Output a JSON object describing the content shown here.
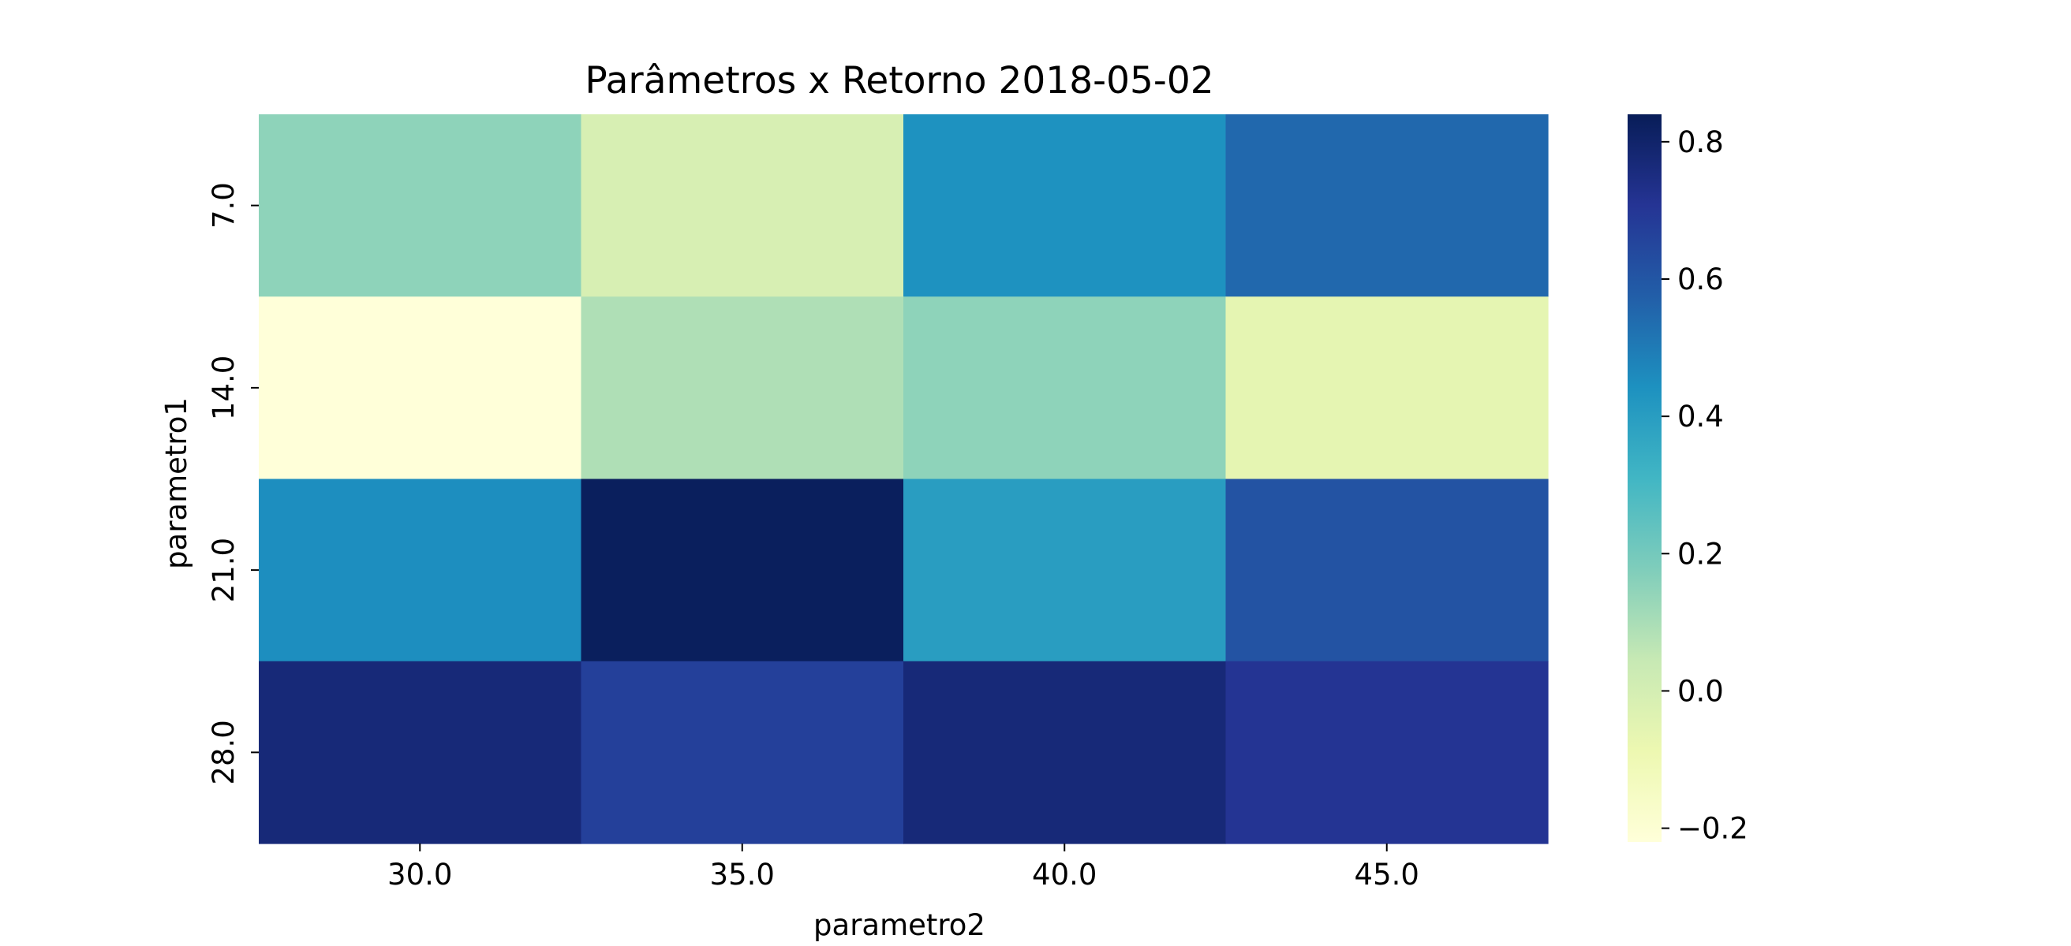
{
  "chart_data": {
    "type": "heatmap",
    "title": "Parâmetros x Retorno 2018-05-02",
    "xlabel": "parametro2",
    "ylabel": "parametro1",
    "x_categories": [
      "30.0",
      "35.0",
      "40.0",
      "45.0"
    ],
    "y_categories": [
      "7.0",
      "14.0",
      "21.0",
      "28.0"
    ],
    "values": [
      [
        0.15,
        -0.01,
        0.44,
        0.55
      ],
      [
        -0.22,
        0.09,
        0.15,
        -0.06
      ],
      [
        0.45,
        0.83,
        0.4,
        0.61
      ],
      [
        0.77,
        0.67,
        0.77,
        0.71
      ]
    ],
    "colormap": "YlGnBu",
    "vmin": -0.22,
    "vmax": 0.84,
    "colorbar_ticks": [
      "−0.2",
      "0.0",
      "0.2",
      "0.4",
      "0.6",
      "0.8"
    ],
    "colorbar_tick_values": [
      -0.2,
      0.0,
      0.2,
      0.4,
      0.6,
      0.8
    ]
  }
}
